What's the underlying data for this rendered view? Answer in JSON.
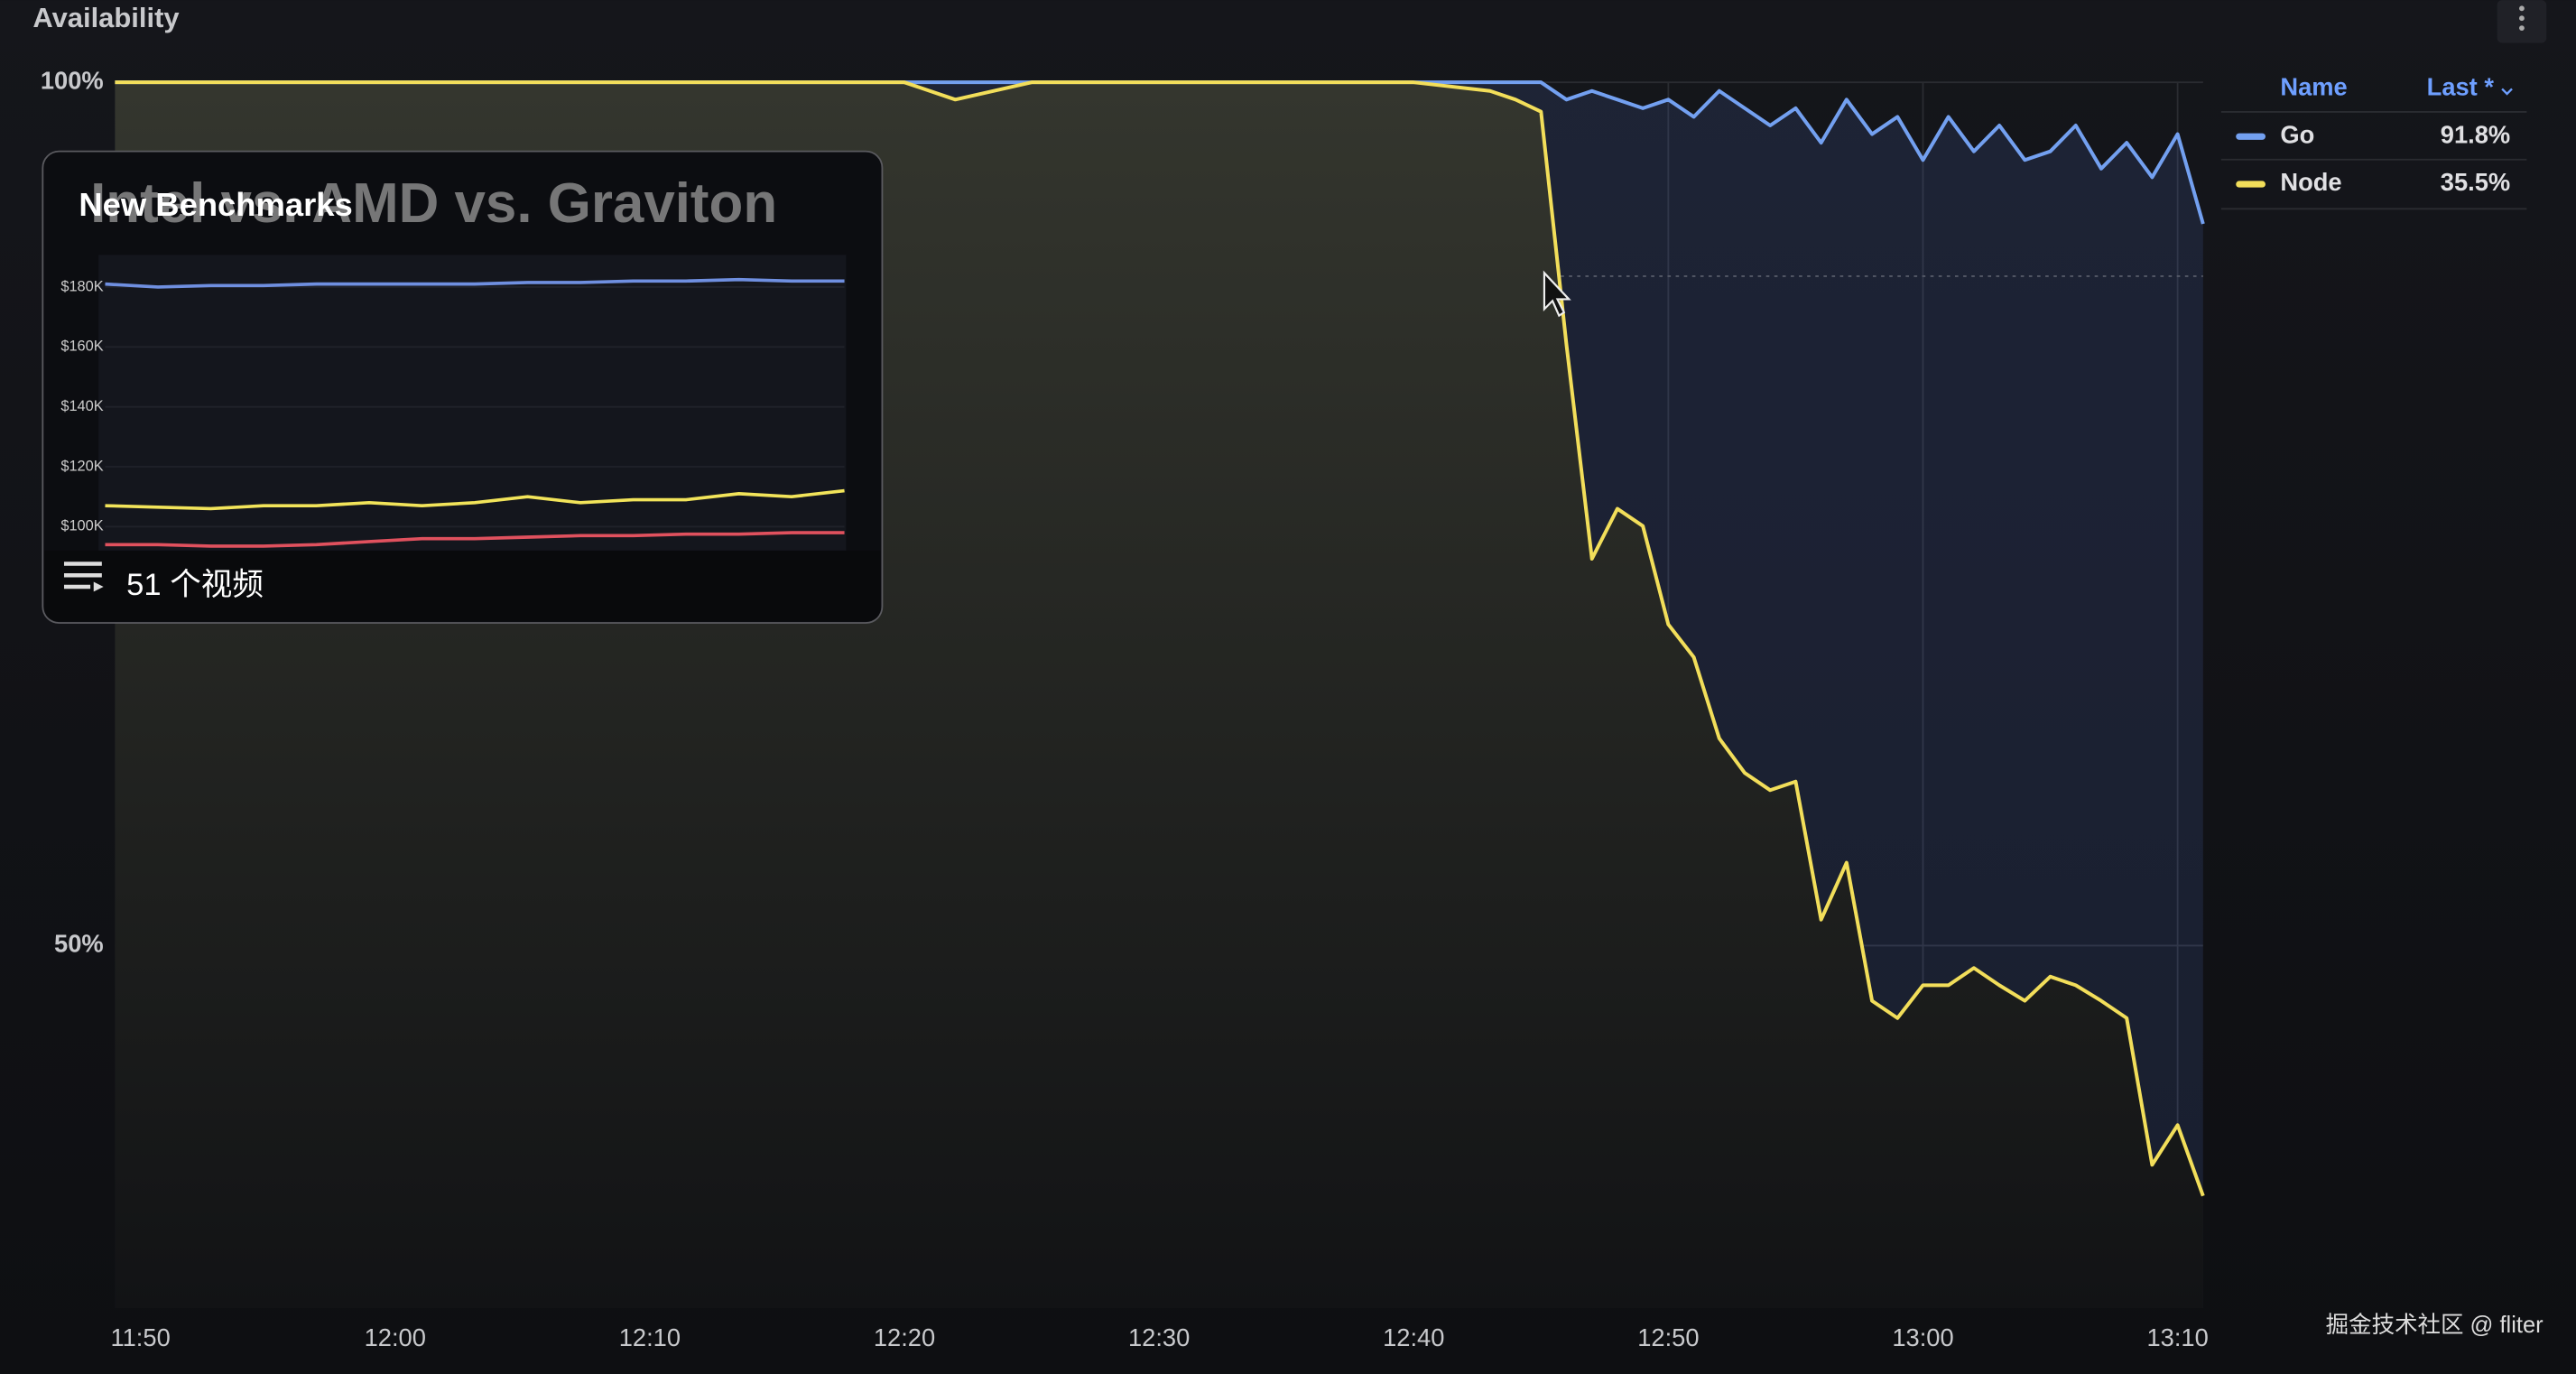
{
  "chart_data": [
    {
      "type": "line",
      "title": "Availability",
      "x": [
        "11:49",
        "11:50",
        "11:55",
        "12:00",
        "12:05",
        "12:10",
        "12:15",
        "12:20",
        "12:22",
        "12:25",
        "12:30",
        "12:35",
        "12:40",
        "12:43",
        "12:44",
        "12:45",
        "12:46",
        "12:47",
        "12:48",
        "12:49",
        "12:50",
        "12:51",
        "12:52",
        "12:53",
        "12:54",
        "12:55",
        "12:56",
        "12:57",
        "12:58",
        "12:59",
        "13:00",
        "13:01",
        "13:02",
        "13:03",
        "13:04",
        "13:05",
        "13:06",
        "13:07",
        "13:08",
        "13:09",
        "13:10",
        "13:11"
      ],
      "series": [
        {
          "name": "Go",
          "color": "#73a0f0",
          "last_label": "91.8%",
          "values": [
            100,
            100,
            100,
            100,
            100,
            100,
            100,
            100,
            100,
            100,
            100,
            100,
            100,
            100,
            100,
            100,
            99,
            99.5,
            99,
            98.5,
            99,
            98,
            99.5,
            98.5,
            97.5,
            98.5,
            96.5,
            99,
            97,
            98,
            95.5,
            98,
            96,
            97.5,
            95.5,
            96,
            97.5,
            95,
            96.5,
            94.5,
            97,
            91.8
          ]
        },
        {
          "name": "Node",
          "color": "#f2de5a",
          "last_label": "35.5%",
          "values": [
            100,
            100,
            100,
            100,
            100,
            100,
            100,
            100,
            99,
            100,
            100,
            100,
            100,
            99.5,
            99,
            98.3,
            84.8,
            72.4,
            75.3,
            74.3,
            68.6,
            66.7,
            62,
            60,
            59,
            59.5,
            51.5,
            54.8,
            46.8,
            45.8,
            47.7,
            47.7,
            48.7,
            47.7,
            46.8,
            48.2,
            47.7,
            46.8,
            45.8,
            37.3,
            39.6,
            35.5
          ]
        }
      ],
      "xlim": [
        "11:49",
        "13:11"
      ],
      "xticks": [
        "11:50",
        "12:00",
        "12:10",
        "12:20",
        "12:30",
        "12:40",
        "12:50",
        "13:00",
        "13:10"
      ],
      "ylim": [
        29,
        100
      ],
      "yticks": [
        {
          "value": 100,
          "label": "100%"
        },
        {
          "value": 50,
          "label": "50%"
        }
      ],
      "grid": true,
      "legend": {
        "position": "right",
        "columns": [
          "Name",
          "Last *"
        ]
      }
    },
    {
      "type": "line",
      "title": "Intel vs. AMD vs. Graviton",
      "series": [
        {
          "color": "#6f8fe0",
          "values": [
            181000,
            180000,
            180500,
            180500,
            181000,
            181000,
            181000,
            181000,
            181500,
            181500,
            182000,
            182000,
            182500,
            182000,
            182000
          ]
        },
        {
          "color": "#f2e45a",
          "values": [
            107000,
            106500,
            106000,
            107000,
            107000,
            108000,
            107000,
            108000,
            110000,
            108000,
            109000,
            109000,
            111000,
            110000,
            112000
          ]
        },
        {
          "color": "#e0515e",
          "values": [
            94000,
            94000,
            93500,
            93500,
            94000,
            95000,
            96000,
            96000,
            96500,
            97000,
            97000,
            97500,
            97500,
            98000,
            98000
          ]
        }
      ],
      "ylim": [
        92000,
        188000
      ],
      "yticks": [
        {
          "value": 180000,
          "label": "$180K"
        },
        {
          "value": 160000,
          "label": "$160K"
        },
        {
          "value": 140000,
          "label": "$140K"
        },
        {
          "value": 120000,
          "label": "$120K"
        },
        {
          "value": 100000,
          "label": "$100K"
        }
      ]
    }
  ],
  "overlay": {
    "title": "New Benchmarks",
    "playlist": "51 个视频"
  },
  "watermark": "掘金技术社区 @ fliter"
}
